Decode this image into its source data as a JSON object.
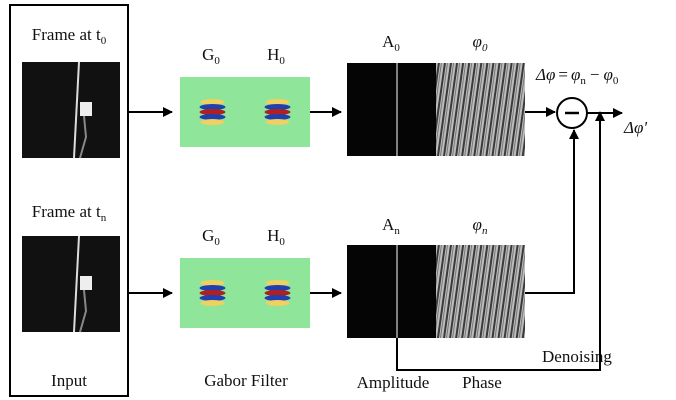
{
  "input": {
    "label": "Input",
    "frames": [
      {
        "text": "Frame at t",
        "sub": "0"
      },
      {
        "text": "Frame at t",
        "sub": "n"
      }
    ]
  },
  "gabor": {
    "label": "Gabor Filter",
    "filters": [
      {
        "text": "G",
        "sub": "0"
      },
      {
        "text": "H",
        "sub": "0"
      }
    ]
  },
  "output": {
    "amplitude_label": "Amplitude",
    "phase_label": "Phase",
    "rows": [
      {
        "amp": {
          "text": "A",
          "sub": "0"
        },
        "phase": {
          "text": "φ",
          "sub": "0"
        }
      },
      {
        "amp": {
          "text": "A",
          "sub": "n"
        },
        "phase": {
          "text": "φ",
          "sub": "n"
        }
      }
    ]
  },
  "equation": {
    "lhs": "Δφ",
    "equals": "=",
    "a": {
      "text": "φ",
      "sub": "n"
    },
    "minus": "−",
    "b": {
      "text": "φ",
      "sub": "0"
    }
  },
  "result": "Δφ'",
  "denoising": "Denoising"
}
